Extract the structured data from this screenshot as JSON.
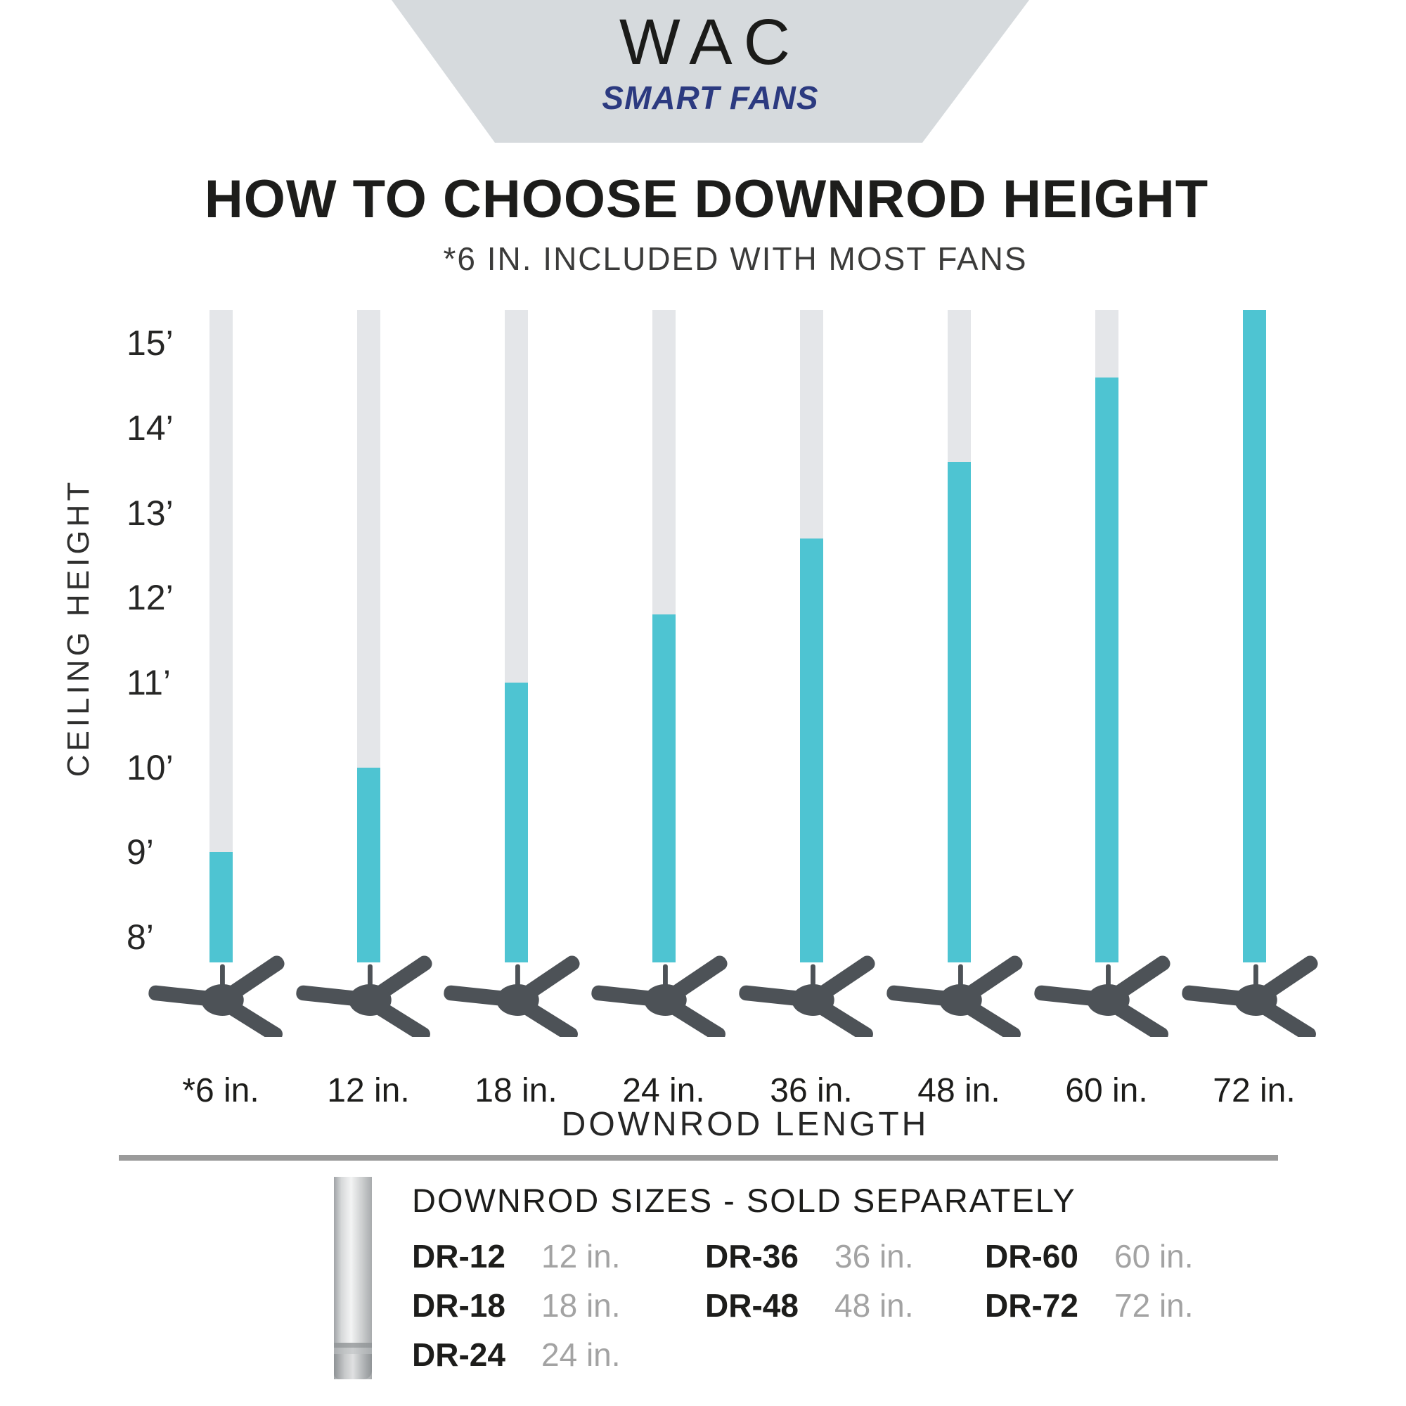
{
  "brand": {
    "name": "WAC",
    "tagline": "SMART FANS",
    "banner_color": "#d6dadd",
    "name_color": "#1b1b19",
    "tagline_color": "#2c3a80"
  },
  "header": {
    "title": "HOW TO CHOOSE DOWNROD HEIGHT",
    "subtitle": "*6 IN. INCLUDED WITH MOST FANS"
  },
  "chart_data": {
    "type": "bar",
    "title": "HOW TO CHOOSE DOWNROD HEIGHT",
    "xlabel": "DOWNROD LENGTH",
    "ylabel": "CEILING HEIGHT",
    "categories": [
      "*6 in.",
      "12 in.",
      "18 in.",
      "24 in.",
      "36 in.",
      "48 in.",
      "60 in.",
      "72 in."
    ],
    "series": [
      {
        "name": "recommended ceiling height (ft)",
        "values": [
          9,
          10,
          11,
          11.8,
          12.7,
          13.6,
          14.6,
          15.4
        ]
      }
    ],
    "y_ticks": [
      {
        "value": 15,
        "label": "15’"
      },
      {
        "value": 14,
        "label": "14’"
      },
      {
        "value": 13,
        "label": "13’"
      },
      {
        "value": 12,
        "label": "12’"
      },
      {
        "value": 11,
        "label": "11’"
      },
      {
        "value": 10,
        "label": "10’"
      },
      {
        "value": 9,
        "label": "9’"
      },
      {
        "value": 8,
        "label": "8’"
      }
    ],
    "ylim": [
      7.7,
      15.4
    ],
    "grid": false,
    "legend": false,
    "bar_color": "#4ec4d2",
    "track_color": "#e4e6e9",
    "fan_color": "#4d5257"
  },
  "footer": {
    "heading": "DOWNROD SIZES - SOLD SEPARATELY",
    "divider_color": "#9b9b9b",
    "columns": [
      [
        {
          "code": "DR-12",
          "length": "12 in."
        },
        {
          "code": "DR-18",
          "length": "18 in."
        },
        {
          "code": "DR-24",
          "length": "24 in."
        }
      ],
      [
        {
          "code": "DR-36",
          "length": "36 in."
        },
        {
          "code": "DR-48",
          "length": "48 in."
        }
      ],
      [
        {
          "code": "DR-60",
          "length": "60 in."
        },
        {
          "code": "DR-72",
          "length": "72 in."
        }
      ]
    ]
  }
}
